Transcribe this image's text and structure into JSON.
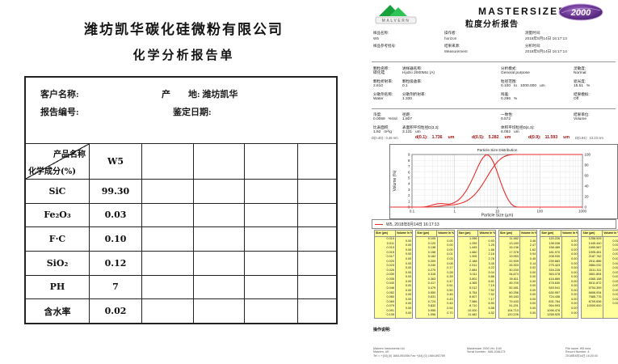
{
  "left_doc": {
    "company": "潍坊凯华碳化硅微粉有限公司",
    "title": "化学分析报告单",
    "info": {
      "customer_label": "客户名称:",
      "origin_label": "产　　地: ",
      "origin_value": "潍坊凯华",
      "report_no_label": "报告编号:",
      "date_label": "鉴定日期:"
    },
    "table": {
      "corner_top": "产品名称",
      "corner_bottom": "化学成分(%)",
      "product_columns": [
        "W5",
        "",
        "",
        "",
        ""
      ],
      "rows": [
        {
          "label": "SiC",
          "values": [
            "99.30",
            "",
            "",
            "",
            ""
          ]
        },
        {
          "label": "Fe₂O₃",
          "values": [
            "0.03",
            "",
            "",
            "",
            ""
          ]
        },
        {
          "label": "F·C",
          "values": [
            "0.10",
            "",
            "",
            "",
            ""
          ]
        },
        {
          "label": "SiO₂",
          "values": [
            "0.12",
            "",
            "",
            "",
            ""
          ]
        },
        {
          "label": "PH",
          "values": [
            "7",
            "",
            "",
            "",
            ""
          ]
        },
        {
          "label": "含水率",
          "values": [
            "0.02",
            "",
            "",
            "",
            ""
          ]
        }
      ]
    }
  },
  "right_doc": {
    "brand": {
      "logo_text": "MALVERN",
      "product": "MASTERSIZER",
      "badge": "2000",
      "report_title": "粒度分析报告"
    },
    "sample_info": {
      "columns": [
        {
          "fields": [
            [
              "样品名称:",
              "W5"
            ],
            [
              "样品参考批号:",
              " "
            ]
          ]
        },
        {
          "fields": [
            [
              "操作者:",
              "horizon"
            ],
            [
              "结果来源:",
              "Measurement"
            ]
          ]
        },
        {
          "fields": [
            [
              "测量时间:",
              "2018年8月14日 16:17:13"
            ],
            [
              "分析时间:",
              "2018年8月14日 16:17:14"
            ]
          ]
        }
      ]
    },
    "params1": {
      "columns": [
        {
          "fields": [
            [
              "颗粒名称:",
              "碳化硅"
            ],
            [
              "颗粒折射率:",
              "2.610"
            ],
            [
              "分散剂名称:",
              "Water"
            ]
          ]
        },
        {
          "fields": [
            [
              "进样器名称:",
              "Hydro 2000MU (A)"
            ],
            [
              "颗粒吸收率:",
              "0.1"
            ],
            [
              "分散剂折射率:",
              "1.330"
            ]
          ]
        },
        {
          "fields": [
            [
              "分析模式:",
              "General purpose"
            ],
            [
              "粒径范围:",
              "0.100   to   1000.000   um"
            ],
            [
              "残差:",
              "0.296   %"
            ]
          ]
        },
        {
          "fields": [
            [
              "灵敏度:",
              "Normal"
            ],
            [
              "遮光度:",
              "15.51   %"
            ],
            [
              "结果模拟:",
              "Off"
            ]
          ]
        }
      ]
    },
    "params2": {
      "columns": [
        {
          "fields": [
            [
              "浓度:",
              "0.0059   %Vol"
            ],
            [
              "比表面积:",
              "1.92   m²/g"
            ]
          ]
        },
        {
          "fields": [
            [
              "径距:",
              "1.807"
            ],
            [
              "表面积平均粒径D[3,2]:",
              "3.131   um"
            ]
          ]
        },
        {
          "fields": [
            [
              "一致性:",
              "0.572"
            ],
            [
              "体积平均粒径D[4,3]:",
              "6.062   um"
            ]
          ]
        },
        {
          "fields": [
            [
              "结果单位:",
              "Volume"
            ]
          ]
        }
      ]
    },
    "percentiles_row": {
      "left_note": "D(0.40) : 0.46 nm",
      "items": [
        [
          "d(0.1):",
          "1.736",
          "um"
        ],
        [
          "d(0.5):",
          "5.282",
          "um"
        ],
        [
          "d(0.9):",
          "11.593",
          "um"
        ]
      ],
      "right_note": "D(0.94) : 13.23 nm"
    },
    "size_table": {
      "col_headers": [
        "Size (µm)",
        "Volume In %"
      ]
    },
    "notes_label": "操作说明:",
    "footer": {
      "left": [
        "Malvern Instruments Ltd.",
        "Malvern, UK",
        "Tel := +[44] (0) 1684-892456 Fax +[44] (0) 1684-892789"
      ],
      "center": [
        "Mastersizer 2000 Ver. 5.60",
        "Serial Number : MAL1046173"
      ],
      "right": [
        "File name: W5.mea",
        "Record Number: 4",
        "2018年8月14日 16:20:43"
      ]
    }
  },
  "chart_data": {
    "type": "line",
    "title": "Particle Size Distribution",
    "xlabel": "Particle Size (µm)",
    "ylabel": "Volume (%)",
    "x_scale": "log",
    "xlim": [
      0.1,
      1000
    ],
    "ylim_left": [
      0,
      9
    ],
    "ylim_right": [
      0,
      100
    ],
    "x_ticks": [
      "0.1",
      "1",
      "10",
      "100",
      "1000"
    ],
    "y_ticks_left": [
      0,
      1,
      2,
      3,
      4,
      5,
      6,
      7,
      8,
      9
    ],
    "y_ticks_right": [
      0,
      20,
      40,
      60,
      80,
      100
    ],
    "legend": "W5, 2018年8月14日 16:17:13",
    "grid": true,
    "series_note": "red frequency curve (left axis) and red cumulative undersize curve (right axis)",
    "percentiles": {
      "d10_um": 1.736,
      "d50_um": 5.282,
      "d90_um": 11.593
    },
    "sizes_um": [
      0.01,
      0.011,
      0.013,
      0.015,
      0.017,
      0.02,
      0.023,
      0.026,
      0.03,
      0.035,
      0.04,
      0.046,
      0.052,
      0.06,
      0.069,
      0.079,
      0.091,
      0.105,
      0.12,
      0.138,
      0.158,
      0.182,
      0.209,
      0.24,
      0.275,
      0.316,
      0.363,
      0.417,
      0.479,
      0.55,
      0.631,
      0.724,
      0.832,
      0.955,
      1.096,
      1.259,
      1.445,
      1.66,
      1.905,
      2.188,
      2.512,
      2.884,
      3.311,
      3.802,
      4.365,
      5.012,
      5.754,
      6.607,
      7.586,
      8.71,
      10.0,
      11.482,
      13.183,
      15.136,
      17.378,
      19.953,
      22.909,
      26.303,
      30.2,
      34.674,
      39.811,
      45.709,
      52.481,
      60.256,
      69.183,
      79.433,
      91.201,
      104.713,
      120.226,
      138.038,
      158.489,
      181.97,
      208.93,
      239.883,
      275.423,
      316.228,
      363.078,
      416.869,
      478.63,
      549.541,
      630.957,
      724.436,
      831.764,
      954.993,
      1096.478,
      1258.925,
      1445.44,
      1659.587,
      1905.461,
      2187.762,
      2511.886,
      2884.032,
      3311.311,
      3801.894,
      4365.158,
      5011.872,
      5754.399,
      6606.934,
      7585.776,
      8709.636,
      10000.0
    ],
    "volume_in_percent": [
      0,
      0,
      0,
      0,
      0,
      0,
      0,
      0,
      0,
      0,
      0,
      0,
      0,
      0,
      0,
      0,
      0,
      0,
      0,
      0,
      0.01,
      0.03,
      0.08,
      0.17,
      0.28,
      0.39,
      0.47,
      0.51,
      0.5,
      0.46,
      0.43,
      0.45,
      0.54,
      0.7,
      0.93,
      1.25,
      1.66,
      2.16,
      2.76,
      3.45,
      4.22,
      5.04,
      5.86,
      6.61,
      7.19,
      7.52,
      7.52,
      7.17,
      6.5,
      5.58,
      4.52,
      3.46,
      2.47,
      1.62,
      0.94,
      0.45,
      0.14,
      0.02,
      0,
      0,
      0,
      0,
      0,
      0,
      0,
      0,
      0,
      0,
      0,
      0,
      0,
      0,
      0,
      0,
      0,
      0,
      0,
      0,
      0,
      0,
      0,
      0,
      0,
      0,
      0,
      0,
      0,
      0,
      0,
      0,
      0,
      0,
      0,
      0,
      0,
      0,
      0,
      0,
      0,
      0
    ]
  }
}
